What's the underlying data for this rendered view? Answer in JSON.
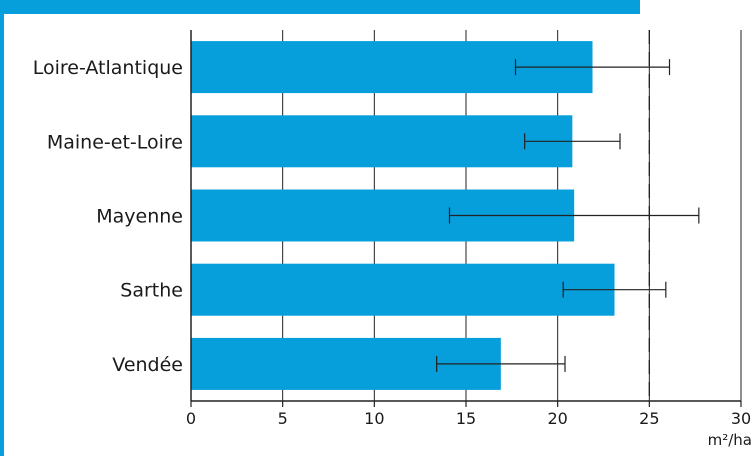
{
  "chart_data": {
    "type": "bar",
    "orientation": "horizontal",
    "categories": [
      "Loire-Atlantique",
      "Maine-et-Loire",
      "Mayenne",
      "Sarthe",
      "Vendée"
    ],
    "values": [
      21.9,
      20.8,
      20.9,
      23.1,
      16.9
    ],
    "error_low": [
      17.7,
      18.2,
      14.1,
      20.3,
      13.4
    ],
    "error_high": [
      26.1,
      23.4,
      27.7,
      25.9,
      20.4
    ],
    "reference_line": 25,
    "xlim": [
      0,
      30
    ],
    "x_ticks": [
      "0",
      "5",
      "10",
      "15",
      "20",
      "25",
      "30"
    ],
    "xunit": "m²/ha",
    "grid": "vertical gridlines",
    "colors": {
      "bar": "#069fdc",
      "frame": "#069fdc",
      "title_band": "#069fdc"
    }
  }
}
